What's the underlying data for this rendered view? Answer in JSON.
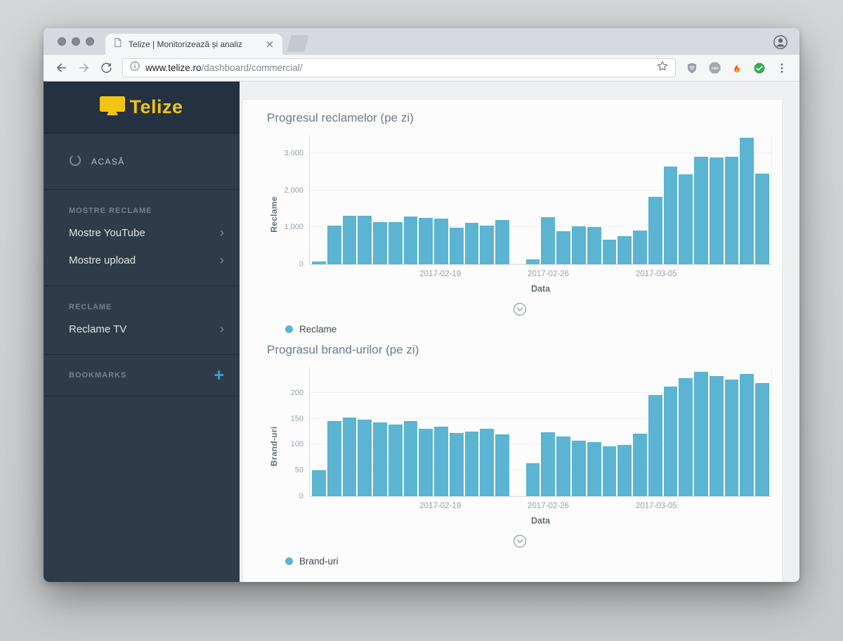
{
  "window": {
    "tab_title": "Telize | Monitorizează și analiz",
    "url_host": "www.telize.ro",
    "url_path": "/dashboard/commercial/"
  },
  "sidebar": {
    "logo_text": "Telize",
    "home": "ACASĂ",
    "section_mostre": "MOSTRE RECLAME",
    "item_mostre_youtube": "Mostre YouTube",
    "item_mostre_upload": "Mostre upload",
    "section_reclame": "RECLAME",
    "item_reclame_tv": "Reclame TV",
    "bookmarks": "BOOKMARKS",
    "bookmarks_add": "+",
    "chevron": "›"
  },
  "chart_data": [
    {
      "type": "bar",
      "title": "Progresul reclamelor (pe zi)",
      "y_label": "Reclame",
      "x_label": "Data",
      "legend": "Reclame",
      "bar_color": "#5bb4d2",
      "ymax": 3500,
      "yticks": [
        {
          "v": 0,
          "label": "0"
        },
        {
          "v": 1000,
          "label": "1,000"
        },
        {
          "v": 2000,
          "label": "2,000"
        },
        {
          "v": 3000,
          "label": "3,000"
        }
      ],
      "xticks": [
        {
          "slot": 8,
          "label": "2017-02-19"
        },
        {
          "slot": 15,
          "label": "2017-02-26"
        },
        {
          "slot": 22,
          "label": "2017-03-05"
        }
      ],
      "values": [
        80,
        1050,
        1320,
        1320,
        1150,
        1140,
        1300,
        1250,
        1230,
        980,
        1120,
        1040,
        1200,
        null,
        130,
        1280,
        890,
        1030,
        1000,
        660,
        760,
        920,
        1820,
        2640,
        2440,
        2920,
        2900,
        2910,
        3420,
        2450
      ]
    },
    {
      "type": "bar",
      "title": "Prograsul brand-urilor (pe zi)",
      "y_label": "Brand-uri",
      "x_label": "Data",
      "legend": "Brand-uri",
      "bar_color": "#5bb4d2",
      "ymax": 250,
      "yticks": [
        {
          "v": 0,
          "label": "0"
        },
        {
          "v": 50,
          "label": "50"
        },
        {
          "v": 100,
          "label": "100"
        },
        {
          "v": 150,
          "label": "150"
        },
        {
          "v": 200,
          "label": "200"
        }
      ],
      "xticks": [
        {
          "slot": 8,
          "label": "2017-02-19"
        },
        {
          "slot": 15,
          "label": "2017-02-26"
        },
        {
          "slot": 22,
          "label": "2017-03-05"
        }
      ],
      "values": [
        50,
        145,
        152,
        148,
        143,
        139,
        145,
        130,
        134,
        122,
        125,
        131,
        120,
        null,
        64,
        123,
        116,
        107,
        104,
        96,
        99,
        121,
        196,
        212,
        228,
        240,
        232,
        226,
        236,
        219
      ]
    }
  ]
}
